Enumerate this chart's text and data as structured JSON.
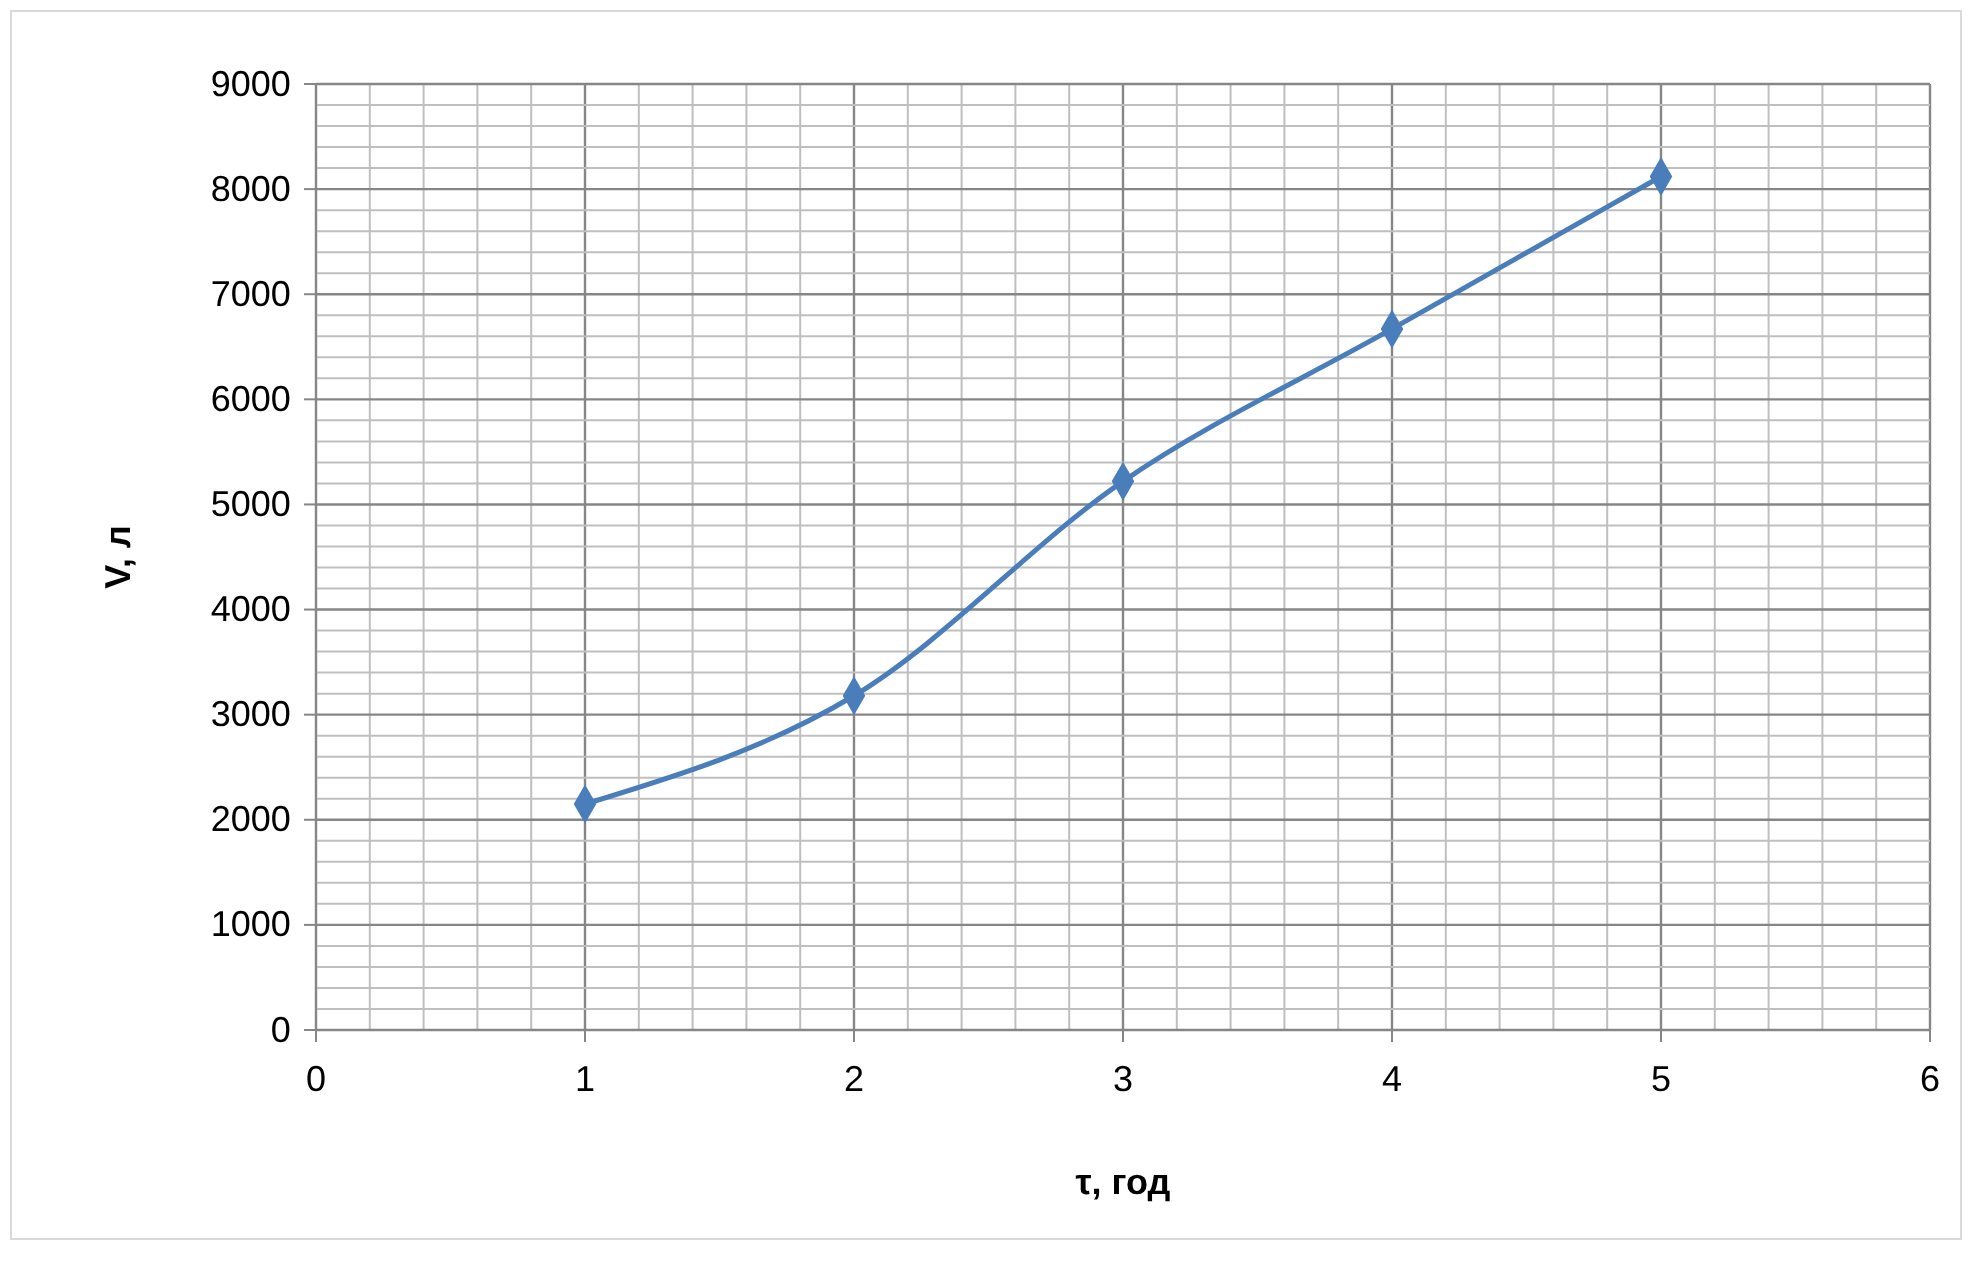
{
  "chart_data": {
    "type": "line",
    "xlabel": "τ, год",
    "ylabel": "V, л",
    "x": [
      1,
      2,
      3,
      4,
      5
    ],
    "series": [
      {
        "color": "#4a7ebb",
        "values": [
          2150,
          3180,
          5220,
          6670,
          8120
        ]
      }
    ],
    "xlim": [
      0,
      6
    ],
    "ylim": [
      0,
      9000
    ],
    "xticks": [
      0,
      {
        "value": 0.2,
        "label": null
      },
      {
        "value": 0.4,
        "label": null
      },
      {
        "value": 0.6,
        "label": null
      },
      {
        "value": 0.8,
        "label": null
      },
      1,
      {
        "value": 1.2,
        "label": null
      },
      {
        "value": 1.4,
        "label": null
      },
      {
        "value": 1.6,
        "label": null
      },
      {
        "value": 1.8,
        "label": null
      },
      2,
      {
        "value": 2.2,
        "label": null
      },
      {
        "value": 2.4,
        "label": null
      },
      {
        "value": 2.6,
        "label": null
      },
      {
        "value": 2.8,
        "label": null
      },
      3,
      {
        "value": 3.2,
        "label": null
      },
      {
        "value": 3.4,
        "label": null
      },
      {
        "value": 3.6,
        "label": null
      },
      {
        "value": 3.8,
        "label": null
      },
      4,
      {
        "value": 4.2,
        "label": null
      },
      {
        "value": 4.4,
        "label": null
      },
      {
        "value": 4.6,
        "label": null
      },
      {
        "value": 4.8,
        "label": null
      },
      5,
      {
        "value": 5.2,
        "label": null
      },
      {
        "value": 5.4,
        "label": null
      },
      {
        "value": 5.6,
        "label": null
      },
      {
        "value": 5.8,
        "label": null
      },
      6
    ],
    "yticks": [
      0,
      {
        "value": 200,
        "label": null
      },
      {
        "value": 400,
        "label": null
      },
      {
        "value": 600,
        "label": null
      },
      {
        "value": 800,
        "label": null
      },
      1000,
      {
        "value": 1200,
        "label": null
      },
      {
        "value": 1400,
        "label": null
      },
      {
        "value": 1600,
        "label": null
      },
      {
        "value": 1800,
        "label": null
      },
      2000,
      {
        "value": 2200,
        "label": null
      },
      {
        "value": 2400,
        "label": null
      },
      {
        "value": 2600,
        "label": null
      },
      {
        "value": 2800,
        "label": null
      },
      3000,
      {
        "value": 3200,
        "label": null
      },
      {
        "value": 3400,
        "label": null
      },
      {
        "value": 3600,
        "label": null
      },
      {
        "value": 3800,
        "label": null
      },
      4000,
      {
        "value": 4200,
        "label": null
      },
      {
        "value": 4400,
        "label": null
      },
      {
        "value": 4600,
        "label": null
      },
      {
        "value": 4800,
        "label": null
      },
      5000,
      {
        "value": 5200,
        "label": null
      },
      {
        "value": 5400,
        "label": null
      },
      {
        "value": 5600,
        "label": null
      },
      {
        "value": 5800,
        "label": null
      },
      6000,
      {
        "value": 6200,
        "label": null
      },
      {
        "value": 6400,
        "label": null
      },
      {
        "value": 6600,
        "label": null
      },
      {
        "value": 6800,
        "label": null
      },
      7000,
      {
        "value": 7200,
        "label": null
      },
      {
        "value": 7400,
        "label": null
      },
      {
        "value": 7600,
        "label": null
      },
      {
        "value": 7800,
        "label": null
      },
      8000,
      {
        "value": 8200,
        "label": null
      },
      {
        "value": 8400,
        "label": null
      },
      {
        "value": 8600,
        "label": null
      },
      {
        "value": 8800,
        "label": null
      },
      9000
    ],
    "grid": true,
    "marker": "diamond",
    "line_style": "solid"
  }
}
